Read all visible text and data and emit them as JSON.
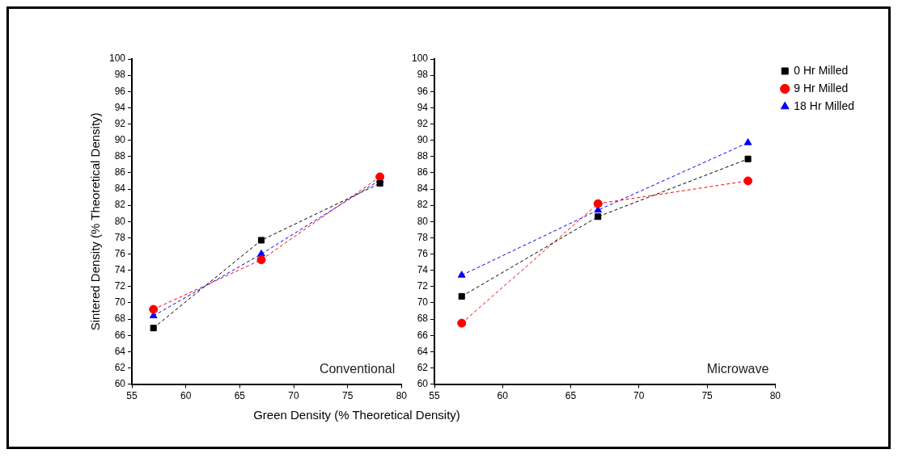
{
  "chart_data": [
    {
      "type": "line",
      "ylabel": "Sintered Density (% Theoretical Density)",
      "xlabel": "Green Density (% Theoretical Density)",
      "annotations": [
        "Conventional"
      ],
      "x": [
        57,
        67,
        78
      ],
      "xlim": [
        55,
        80
      ],
      "xticks": [
        55,
        60,
        65,
        70,
        75,
        80
      ],
      "ylim": [
        60,
        100
      ],
      "yticks": [
        60,
        62,
        64,
        66,
        68,
        70,
        72,
        74,
        76,
        78,
        80,
        82,
        84,
        86,
        88,
        90,
        92,
        94,
        96,
        98,
        100
      ],
      "grid": false,
      "legend": false,
      "line_style": "dashed",
      "series": [
        {
          "color": "#000000",
          "marker": "square",
          "values": [
            66.9,
            77.7,
            84.7
          ]
        },
        {
          "color": "#ff0000",
          "marker": "circle",
          "values": [
            69.2,
            75.3,
            85.5
          ]
        },
        {
          "color": "#0000ff",
          "marker": "triangle",
          "values": [
            68.4,
            76.0,
            85.1
          ]
        }
      ]
    },
    {
      "type": "line",
      "annotations": [
        "Microwave"
      ],
      "x": [
        57,
        67,
        78
      ],
      "xlim": [
        55,
        80
      ],
      "xticks": [
        55,
        60,
        65,
        70,
        75,
        80
      ],
      "ylim": [
        60,
        100
      ],
      "yticks": [
        60,
        62,
        64,
        66,
        68,
        70,
        72,
        74,
        76,
        78,
        80,
        82,
        84,
        86,
        88,
        90,
        92,
        94,
        96,
        98,
        100
      ],
      "grid": false,
      "legend": "top right",
      "line_style": "dashed",
      "series": [
        {
          "name": "0 Hr Milled",
          "color": "#000000",
          "marker": "square",
          "values": [
            70.8,
            80.6,
            87.7
          ]
        },
        {
          "name": "9 Hr Milled",
          "color": "#ff0000",
          "marker": "circle",
          "values": [
            67.5,
            82.2,
            85.0
          ]
        },
        {
          "name": "18 Hr Milled",
          "color": "#0000ff",
          "marker": "triangle",
          "values": [
            73.4,
            81.4,
            89.7
          ]
        }
      ]
    }
  ]
}
